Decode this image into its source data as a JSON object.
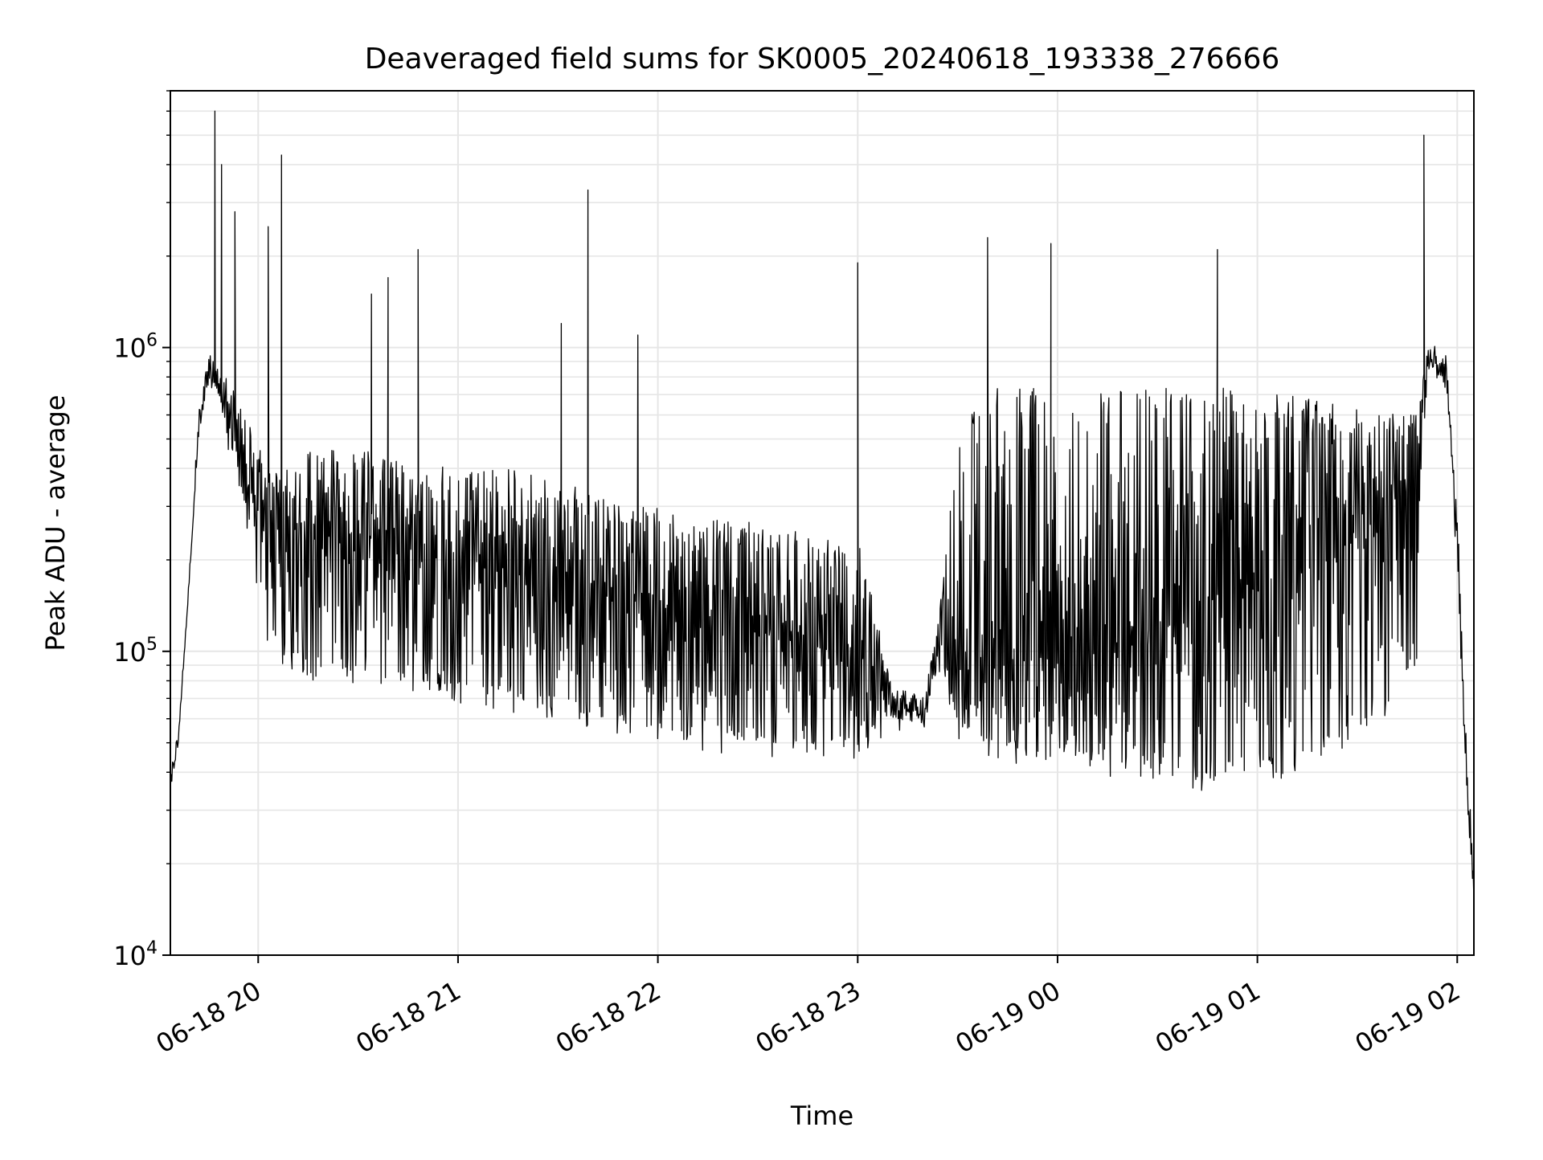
{
  "chart_data": {
    "type": "line",
    "title": "Deaveraged field sums for SK0005_20240618_193338_276666",
    "xlabel": "Time",
    "ylabel": "Peak ADU - average",
    "x_scale": "time",
    "y_scale": "log",
    "xlim": [
      "2024-06-18 19:33:38",
      "2024-06-19 02:05:00"
    ],
    "ylim": [
      10000,
      7000000
    ],
    "grid": true,
    "legend": "none",
    "x_ticks": [
      "2024-06-18 20:00",
      "2024-06-18 21:00",
      "2024-06-18 22:00",
      "2024-06-18 23:00",
      "2024-06-19 00:00",
      "2024-06-19 01:00",
      "2024-06-19 02:00"
    ],
    "x_tick_labels": [
      "06-18 20",
      "06-18 21",
      "06-18 22",
      "06-18 23",
      "06-19 00",
      "06-19 01",
      "06-19 02"
    ],
    "y_ticks": [
      {
        "value": 10000,
        "base": "10",
        "exp": "4"
      },
      {
        "value": 100000,
        "base": "10",
        "exp": "5"
      },
      {
        "value": 1000000,
        "base": "10",
        "exp": "6"
      }
    ],
    "line_color": "#000000",
    "grid_color": "#e6e6e6",
    "series": [
      {
        "time": [
          "2024-06-18 19:33:38",
          "2024-06-18 19:36",
          "2024-06-18 19:39",
          "2024-06-18 19:42",
          "2024-06-18 19:45",
          "2024-06-18 19:48",
          "2024-06-18 19:51",
          "2024-06-18 19:54",
          "2024-06-18 19:57",
          "2024-06-18 20:00",
          "2024-06-18 20:03",
          "2024-06-18 20:06",
          "2024-06-18 20:09",
          "2024-06-18 20:15",
          "2024-06-18 20:20",
          "2024-06-18 20:30",
          "2024-06-18 20:40",
          "2024-06-18 20:50",
          "2024-06-18 21:00",
          "2024-06-18 21:15",
          "2024-06-18 21:30",
          "2024-06-18 21:45",
          "2024-06-18 22:00",
          "2024-06-18 22:15",
          "2024-06-18 22:30",
          "2024-06-18 22:45",
          "2024-06-18 23:00",
          "2024-06-18 23:10",
          "2024-06-18 23:20",
          "2024-06-18 23:25",
          "2024-06-18 23:30",
          "2024-06-18 23:40",
          "2024-06-18 23:50",
          "2024-06-19 00:00",
          "2024-06-19 00:15",
          "2024-06-19 00:30",
          "2024-06-19 00:45",
          "2024-06-19 01:00",
          "2024-06-19 01:15",
          "2024-06-19 01:30",
          "2024-06-19 01:45",
          "2024-06-19 01:48",
          "2024-06-19 01:51",
          "2024-06-19 01:54",
          "2024-06-19 01:57",
          "2024-06-19 02:00",
          "2024-06-19 02:02",
          "2024-06-19 02:05"
        ],
        "base": [
          35000,
          50000,
          150000,
          500000,
          800000,
          750000,
          600000,
          450000,
          350000,
          300000,
          280000,
          270000,
          260000,
          250000,
          250000,
          240000,
          230000,
          220000,
          210000,
          200000,
          180000,
          160000,
          140000,
          130000,
          120000,
          110000,
          100000,
          70000,
          62000,
          110000,
          90000,
          90000,
          95000,
          100000,
          100000,
          120000,
          150000,
          180000,
          220000,
          280000,
          350000,
          420000,
          900000,
          900000,
          750000,
          250000,
          60000,
          15000
        ],
        "low": [
          35000,
          50000,
          150000,
          500000,
          800000,
          700000,
          500000,
          350000,
          250000,
          150000,
          110000,
          100000,
          95000,
          90000,
          85000,
          85000,
          80000,
          80000,
          75000,
          70000,
          65000,
          60000,
          55000,
          52000,
          50000,
          50000,
          48000,
          60000,
          58000,
          100000,
          55000,
          50000,
          45000,
          45000,
          42000,
          40000,
          38000,
          40000,
          45000,
          55000,
          80000,
          100000,
          850000,
          850000,
          700000,
          200000,
          50000,
          15000
        ],
        "high": [
          38000,
          55000,
          170000,
          600000,
          950000,
          850000,
          750000,
          700000,
          550000,
          450000,
          420000,
          420000,
          430000,
          450000,
          450000,
          450000,
          430000,
          420000,
          400000,
          380000,
          350000,
          320000,
          290000,
          270000,
          250000,
          240000,
          230000,
          80000,
          70000,
          150000,
          500000,
          700000,
          700000,
          700000,
          700000,
          700000,
          700000,
          700000,
          650000,
          600000,
          600000,
          600000,
          1000000,
          950000,
          900000,
          300000,
          70000,
          20000
        ]
      }
    ],
    "spikes": [
      {
        "time": "2024-06-18 19:47",
        "value": 6000000
      },
      {
        "time": "2024-06-18 19:49",
        "value": 4000000
      },
      {
        "time": "2024-06-18 19:53",
        "value": 2800000
      },
      {
        "time": "2024-06-18 20:03",
        "value": 2500000
      },
      {
        "time": "2024-06-18 20:07",
        "value": 4300000
      },
      {
        "time": "2024-06-18 20:34",
        "value": 1500000
      },
      {
        "time": "2024-06-18 20:39",
        "value": 1700000
      },
      {
        "time": "2024-06-18 20:48",
        "value": 2100000
      },
      {
        "time": "2024-06-18 21:31",
        "value": 1200000
      },
      {
        "time": "2024-06-18 21:39",
        "value": 3300000
      },
      {
        "time": "2024-06-18 21:54",
        "value": 1100000
      },
      {
        "time": "2024-06-18 23:00",
        "value": 1900000
      },
      {
        "time": "2024-06-18 23:39",
        "value": 2300000
      },
      {
        "time": "2024-06-18 23:58",
        "value": 2200000
      },
      {
        "time": "2024-06-19 00:48",
        "value": 2100000
      },
      {
        "time": "2024-06-19 01:50",
        "value": 5000000
      }
    ]
  }
}
